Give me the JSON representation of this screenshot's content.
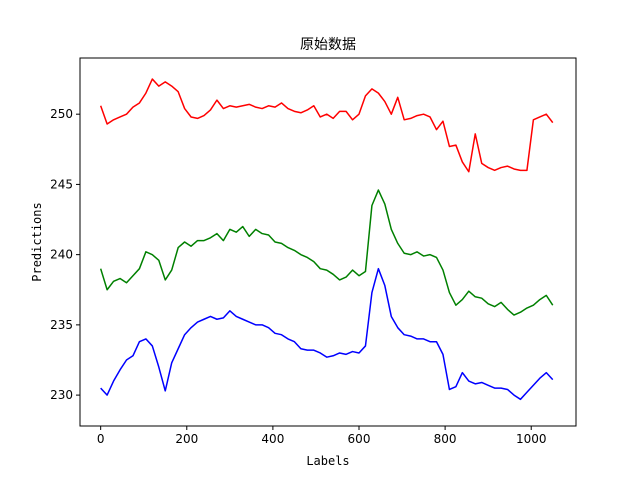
{
  "chart_data": {
    "type": "line",
    "title": "原始数据",
    "xlabel": "Labels",
    "ylabel": "Predictions",
    "xlim": [
      -48,
      1104
    ],
    "ylim": [
      227.8,
      254
    ],
    "xticks": [
      0,
      200,
      400,
      600,
      800,
      1000
    ],
    "yticks": [
      230,
      235,
      240,
      245,
      250
    ],
    "grid": false,
    "legend": "none",
    "series": [
      {
        "color": "#ff0000",
        "x": [
          0,
          15,
          30,
          45,
          60,
          75,
          90,
          105,
          120,
          135,
          150,
          165,
          180,
          195,
          210,
          225,
          240,
          255,
          270,
          285,
          300,
          315,
          330,
          345,
          360,
          375,
          390,
          405,
          420,
          435,
          450,
          465,
          480,
          495,
          510,
          525,
          540,
          555,
          570,
          585,
          600,
          615,
          630,
          645,
          660,
          675,
          690,
          705,
          720,
          735,
          750,
          765,
          780,
          795,
          810,
          825,
          840,
          855,
          870,
          885,
          900,
          915,
          930,
          945,
          960,
          975,
          990,
          1005,
          1020,
          1035,
          1050
        ],
        "y": [
          250.6,
          249.3,
          249.6,
          249.8,
          250.0,
          250.5,
          250.8,
          251.5,
          252.5,
          252.0,
          252.3,
          252.0,
          251.6,
          250.4,
          249.8,
          249.7,
          249.9,
          250.3,
          251.0,
          250.4,
          250.6,
          250.5,
          250.6,
          250.7,
          250.5,
          250.4,
          250.6,
          250.5,
          250.8,
          250.4,
          250.2,
          250.1,
          250.3,
          250.6,
          249.8,
          250.0,
          249.7,
          250.2,
          250.2,
          249.6,
          250.0,
          251.3,
          251.8,
          251.5,
          250.9,
          250.0,
          251.2,
          249.6,
          249.7,
          249.9,
          250.0,
          249.8,
          248.9,
          249.5,
          247.7,
          247.8,
          246.6,
          245.9,
          248.6,
          246.5,
          246.2,
          246.0,
          246.2,
          246.3,
          246.1,
          246.0,
          246.0,
          249.6,
          249.8,
          250.0,
          249.4
        ]
      },
      {
        "color": "#008000",
        "x": [
          0,
          15,
          30,
          45,
          60,
          75,
          90,
          105,
          120,
          135,
          150,
          165,
          180,
          195,
          210,
          225,
          240,
          255,
          270,
          285,
          300,
          315,
          330,
          345,
          360,
          375,
          390,
          405,
          420,
          435,
          450,
          465,
          480,
          495,
          510,
          525,
          540,
          555,
          570,
          585,
          600,
          615,
          630,
          645,
          660,
          675,
          690,
          705,
          720,
          735,
          750,
          765,
          780,
          795,
          810,
          825,
          840,
          855,
          870,
          885,
          900,
          915,
          930,
          945,
          960,
          975,
          990,
          1005,
          1020,
          1035,
          1050
        ],
        "y": [
          239.0,
          237.5,
          238.1,
          238.3,
          238.0,
          238.5,
          239.0,
          240.2,
          240.0,
          239.6,
          238.2,
          238.9,
          240.5,
          240.9,
          240.6,
          241.0,
          241.0,
          241.2,
          241.5,
          241.0,
          241.8,
          241.6,
          242.0,
          241.3,
          241.8,
          241.5,
          241.4,
          240.9,
          240.8,
          240.5,
          240.3,
          240.0,
          239.8,
          239.5,
          239.0,
          238.9,
          238.6,
          238.2,
          238.4,
          238.9,
          238.5,
          238.8,
          243.5,
          244.6,
          243.6,
          241.8,
          240.8,
          240.1,
          240.0,
          240.2,
          239.9,
          240.0,
          239.8,
          238.9,
          237.3,
          236.4,
          236.8,
          237.4,
          237.0,
          236.9,
          236.5,
          236.3,
          236.6,
          236.1,
          235.7,
          235.9,
          236.2,
          236.4,
          236.8,
          237.1,
          236.4
        ]
      },
      {
        "color": "#0000ff",
        "x": [
          0,
          15,
          30,
          45,
          60,
          75,
          90,
          105,
          120,
          135,
          150,
          165,
          180,
          195,
          210,
          225,
          240,
          255,
          270,
          285,
          300,
          315,
          330,
          345,
          360,
          375,
          390,
          405,
          420,
          435,
          450,
          465,
          480,
          495,
          510,
          525,
          540,
          555,
          570,
          585,
          600,
          615,
          630,
          645,
          660,
          675,
          690,
          705,
          720,
          735,
          750,
          765,
          780,
          795,
          810,
          825,
          840,
          855,
          870,
          885,
          900,
          915,
          930,
          945,
          960,
          975,
          990,
          1005,
          1020,
          1035,
          1050
        ],
        "y": [
          230.5,
          230.0,
          231.0,
          231.8,
          232.5,
          232.8,
          233.8,
          234.0,
          233.5,
          232.0,
          230.3,
          232.3,
          233.3,
          234.3,
          234.8,
          235.2,
          235.4,
          235.6,
          235.4,
          235.5,
          236.0,
          235.6,
          235.4,
          235.2,
          235.0,
          235.0,
          234.8,
          234.4,
          234.3,
          234.0,
          233.8,
          233.3,
          233.2,
          233.2,
          233.0,
          232.7,
          232.8,
          233.0,
          232.9,
          233.1,
          233.0,
          233.5,
          237.3,
          239.0,
          237.8,
          235.6,
          234.8,
          234.3,
          234.2,
          234.0,
          234.0,
          233.8,
          233.8,
          232.9,
          230.4,
          230.6,
          231.6,
          231.0,
          230.8,
          230.9,
          230.7,
          230.5,
          230.5,
          230.4,
          230.0,
          229.7,
          230.2,
          230.7,
          231.2,
          231.6,
          231.1
        ]
      }
    ]
  }
}
